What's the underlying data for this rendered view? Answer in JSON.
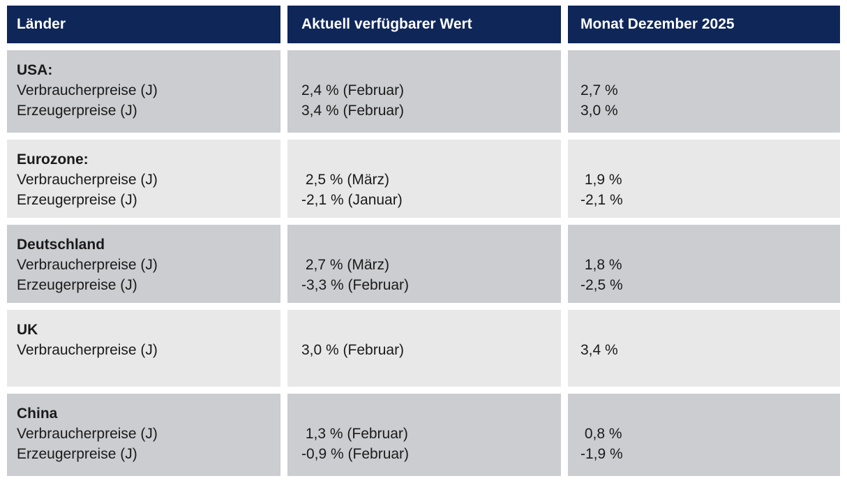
{
  "table": {
    "headers": [
      {
        "label": "Länder"
      },
      {
        "label": "Aktuell verfügbarer Wert"
      },
      {
        "label": "Monat Dezember 2025"
      }
    ],
    "rows": [
      {
        "country": "USA:",
        "indicators": [
          "Verbraucherpreise (J)",
          "Erzeugerpreise (J)"
        ],
        "current": [
          "2,4 % (Februar)",
          "3,4 % (Februar)"
        ],
        "december": [
          "2,7 %",
          "3,0 %"
        ]
      },
      {
        "country": "Eurozone:",
        "indicators": [
          "Verbraucherpreise (J)",
          "Erzeugerpreise (J)"
        ],
        "current": [
          " 2,5 % (März)",
          "-2,1 % (Januar)"
        ],
        "december": [
          " 1,9 %",
          "-2,1 %"
        ]
      },
      {
        "country": "Deutschland",
        "indicators": [
          "Verbraucherpreise (J)",
          "Erzeugerpreise (J)"
        ],
        "current": [
          " 2,7 % (März)",
          "-3,3 % (Februar)"
        ],
        "december": [
          " 1,8 %",
          "-2,5 %"
        ]
      },
      {
        "country": "UK",
        "indicators": [
          "Verbraucherpreise (J)"
        ],
        "current": [
          "3,0 % (Februar)"
        ],
        "december": [
          "3,4 %"
        ]
      },
      {
        "country": "China",
        "indicators": [
          "Verbraucherpreise (J)",
          "Erzeugerpreise (J)"
        ],
        "current": [
          " 1,3 % (Februar)",
          "-0,9 % (Februar)"
        ],
        "december": [
          " 0,8 %",
          "-1,9 %"
        ]
      }
    ]
  },
  "colors": {
    "header_bg": "#0f2659",
    "header_text": "#ffffff",
    "row_dark": "#cccdd1",
    "row_light": "#e8e8e9",
    "body_text": "#1a1a1a",
    "gutter": "#ffffff"
  },
  "chart_data": {
    "type": "table",
    "columns": [
      "Länder",
      "Aktuell verfügbarer Wert",
      "Monat Dezember 2025"
    ],
    "rows": [
      [
        "USA: Verbraucherpreise (J)",
        "2,4 % (Februar)",
        "2,7 %"
      ],
      [
        "USA: Erzeugerpreise (J)",
        "3,4 % (Februar)",
        "3,0 %"
      ],
      [
        "Eurozone: Verbraucherpreise (J)",
        "2,5 % (März)",
        "1,9 %"
      ],
      [
        "Eurozone: Erzeugerpreise (J)",
        "-2,1 % (Januar)",
        "-2,1 %"
      ],
      [
        "Deutschland Verbraucherpreise (J)",
        "2,7 % (März)",
        "1,8 %"
      ],
      [
        "Deutschland Erzeugerpreise (J)",
        "-3,3 % (Februar)",
        "-2,5 %"
      ],
      [
        "UK Verbraucherpreise (J)",
        "3,0 % (Februar)",
        "3,4 %"
      ],
      [
        "China Verbraucherpreise (J)",
        "1,3 % (Februar)",
        "0,8 %"
      ],
      [
        "China Erzeugerpreise (J)",
        "-0,9 % (Februar)",
        "-1,9 %"
      ]
    ]
  }
}
